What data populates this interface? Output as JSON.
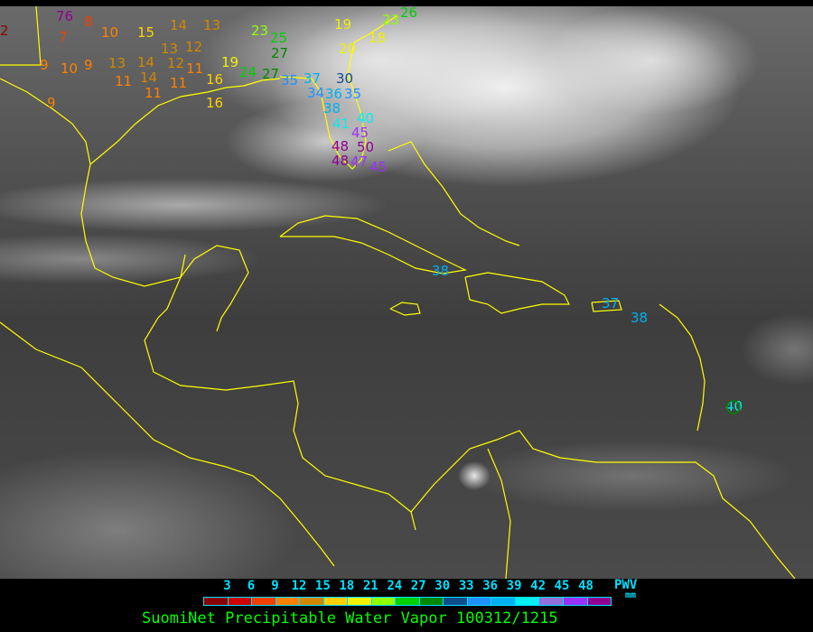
{
  "legend": {
    "ticks": [
      "3",
      "6",
      "9",
      "12",
      "15",
      "18",
      "21",
      "24",
      "27",
      "30",
      "33",
      "36",
      "39",
      "42",
      "45",
      "48"
    ],
    "unit_label": "PWV",
    "unit": "mm",
    "colors": [
      "#8b0000",
      "#d00000",
      "#f04000",
      "#ff8000",
      "#d08800",
      "#ffd000",
      "#f0f000",
      "#90ff00",
      "#00d000",
      "#008800",
      "#104e8b",
      "#1e90ff",
      "#00b0f0",
      "#00f0f0",
      "#9370db",
      "#9b30ff",
      "#900090"
    ],
    "outline_color": "#00e0ff"
  },
  "title": "SuomiNet Precipitable Water Vapor 100312/1215",
  "coastline_color": "#ffff00",
  "stations": [
    {
      "value": "2"
    },
    {
      "value": "76"
    },
    {
      "value": "8"
    },
    {
      "value": "7"
    },
    {
      "value": "10"
    },
    {
      "value": "15"
    },
    {
      "value": "14"
    },
    {
      "value": "13"
    },
    {
      "value": "9"
    },
    {
      "value": "10"
    },
    {
      "value": "9"
    },
    {
      "value": "13"
    },
    {
      "value": "14"
    },
    {
      "value": "13"
    },
    {
      "value": "12"
    },
    {
      "value": "11"
    },
    {
      "value": "14"
    },
    {
      "value": "11"
    },
    {
      "value": "12"
    },
    {
      "value": "11"
    },
    {
      "value": "11"
    },
    {
      "value": "19"
    },
    {
      "value": "9"
    },
    {
      "value": "16"
    },
    {
      "value": "16"
    },
    {
      "value": "24"
    },
    {
      "value": "27"
    },
    {
      "value": "23"
    },
    {
      "value": "25"
    },
    {
      "value": "27"
    },
    {
      "value": "19"
    },
    {
      "value": "20"
    },
    {
      "value": "18"
    },
    {
      "value": "23"
    },
    {
      "value": "26"
    },
    {
      "value": "30"
    },
    {
      "value": "35"
    },
    {
      "value": "37"
    },
    {
      "value": "34"
    },
    {
      "value": "36"
    },
    {
      "value": "35"
    },
    {
      "value": "38"
    },
    {
      "value": "41"
    },
    {
      "value": "40"
    },
    {
      "value": "45"
    },
    {
      "value": "50"
    },
    {
      "value": "48"
    },
    {
      "value": "48"
    },
    {
      "value": "47"
    },
    {
      "value": "45"
    },
    {
      "value": "38"
    },
    {
      "value": "37"
    },
    {
      "value": "38"
    },
    {
      "value": "40"
    }
  ]
}
